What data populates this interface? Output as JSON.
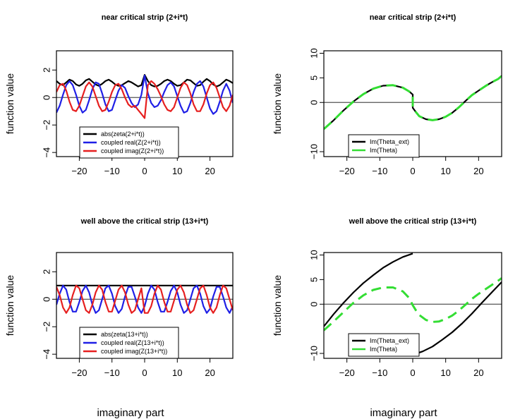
{
  "figure": {
    "bottom_labels": [
      "imaginary part",
      "imaginary part"
    ]
  },
  "chart_data": [
    {
      "type": "line",
      "title": "near critical strip (2+i*t)",
      "ylabel": "function value",
      "xlim": [
        -27,
        27
      ],
      "ylim": [
        -4.3,
        3.4
      ],
      "xticks": [
        -20,
        -10,
        0,
        10,
        20
      ],
      "yticks": [
        -4,
        -2,
        0,
        2
      ],
      "legend": "bottom-center",
      "grid": false,
      "series": [
        {
          "name": "abs(zeta(2+i*t))",
          "color": "#000000",
          "dash": "solid",
          "x": [
            -27,
            -26,
            -25,
            -24,
            -23,
            -22,
            -21,
            -20,
            -19,
            -18,
            -17,
            -16,
            -15,
            -14,
            -13,
            -12,
            -11,
            -10,
            -9,
            -8,
            -7,
            -6,
            -5,
            -4,
            -3,
            -2,
            -1,
            0,
            1,
            2,
            3,
            4,
            5,
            6,
            7,
            8,
            9,
            10,
            11,
            12,
            13,
            14,
            15,
            16,
            17,
            18,
            19,
            20,
            21,
            22,
            23,
            24,
            25,
            26,
            27
          ],
          "y": [
            1.2,
            1.0,
            0.9,
            1.1,
            1.3,
            1.2,
            0.95,
            0.85,
            1.0,
            1.25,
            1.35,
            1.15,
            0.95,
            0.85,
            1.0,
            1.2,
            1.3,
            1.15,
            0.95,
            0.85,
            0.9,
            1.05,
            1.2,
            1.1,
            0.95,
            0.8,
            0.9,
            1.65,
            1.2,
            0.9,
            0.8,
            0.85,
            1.0,
            1.2,
            1.3,
            1.2,
            1.0,
            0.85,
            0.9,
            1.1,
            1.3,
            1.25,
            1.05,
            0.85,
            0.9,
            1.15,
            1.35,
            1.2,
            0.95,
            0.8,
            0.9,
            1.1,
            1.3,
            1.2,
            1.05
          ]
        },
        {
          "name": "coupled real(Z(2+i*t))",
          "color": "#1f1fe6",
          "dash": "solid",
          "x": [
            -27,
            -26,
            -25,
            -24,
            -23,
            -22,
            -21,
            -20,
            -19,
            -18,
            -17,
            -16,
            -15,
            -14,
            -13,
            -12,
            -11,
            -10,
            -9,
            -8,
            -7,
            -6,
            -5,
            -4,
            -3,
            -2,
            -1,
            0,
            1,
            2,
            3,
            4,
            5,
            6,
            7,
            8,
            9,
            10,
            11,
            12,
            13,
            14,
            15,
            16,
            17,
            18,
            19,
            20,
            21,
            22,
            23,
            24,
            25,
            26,
            27
          ],
          "y": [
            -1.1,
            -0.6,
            0.2,
            0.9,
            1.2,
            0.9,
            0.2,
            -0.6,
            -1.1,
            -0.9,
            -0.2,
            0.6,
            1.1,
            1.0,
            0.3,
            -0.5,
            -1.0,
            -0.9,
            -0.2,
            0.5,
            0.9,
            0.7,
            0.1,
            -0.4,
            -0.7,
            -0.5,
            0.2,
            1.6,
            0.3,
            -0.4,
            -0.7,
            -0.6,
            -0.2,
            0.4,
            0.9,
            1.1,
            0.8,
            0.1,
            -0.6,
            -1.1,
            -1.0,
            -0.4,
            0.4,
            1.0,
            1.2,
            0.8,
            0.0,
            -0.8,
            -1.2,
            -1.0,
            -0.3,
            0.5,
            1.0,
            0.5,
            -0.4
          ]
        },
        {
          "name": "coupled imag(Z(2+i*t))",
          "color": "#e61f1f",
          "dash": "solid",
          "x": [
            -27,
            -26,
            -25,
            -24,
            -23,
            -22,
            -21,
            -20,
            -19,
            -18,
            -17,
            -16,
            -15,
            -14,
            -13,
            -12,
            -11,
            -10,
            -9,
            -8,
            -7,
            -6,
            -5,
            -4,
            -3,
            -2,
            -1,
            0,
            1,
            2,
            3,
            4,
            5,
            6,
            7,
            8,
            9,
            10,
            11,
            12,
            13,
            14,
            15,
            16,
            17,
            18,
            19,
            20,
            21,
            22,
            23,
            24,
            25,
            26,
            27
          ],
          "y": [
            0.4,
            0.9,
            1.0,
            0.5,
            -0.3,
            -0.9,
            -1.0,
            -0.6,
            0.1,
            0.8,
            1.1,
            0.8,
            0.1,
            -0.6,
            -1.0,
            -0.9,
            -0.3,
            0.4,
            0.9,
            1.0,
            0.6,
            0.0,
            -0.5,
            -0.7,
            -0.6,
            -0.9,
            -1.2,
            -1.5,
            0.9,
            1.2,
            1.0,
            0.6,
            0.1,
            -0.5,
            -0.9,
            -1.0,
            -0.7,
            0.0,
            0.7,
            1.1,
            0.9,
            0.3,
            -0.5,
            -1.0,
            -1.0,
            -0.5,
            0.3,
            0.9,
            1.1,
            0.7,
            0.0,
            -0.7,
            -1.0,
            -0.6,
            0.2
          ]
        }
      ]
    },
    {
      "type": "line",
      "title": "near critical strip (2+i*t)",
      "ylabel": "function value",
      "xlim": [
        -27,
        27
      ],
      "ylim": [
        -11,
        10.5
      ],
      "xticks": [
        -20,
        -10,
        0,
        10,
        20
      ],
      "yticks": [
        -10,
        0,
        5,
        10
      ],
      "legend": "bottom-center",
      "grid": false,
      "series": [
        {
          "name": "Im(Theta_ext)",
          "color": "#000000",
          "dash": "solid",
          "x": [
            -27,
            -24,
            -21,
            -18,
            -15,
            -12,
            -9,
            -6,
            -3,
            -1,
            0,
            0.01,
            1,
            2,
            4,
            6,
            8,
            10,
            12,
            14,
            16,
            18,
            20,
            22,
            24,
            26,
            27
          ],
          "y": [
            -5.4,
            -3.6,
            -1.6,
            0.2,
            1.7,
            2.8,
            3.4,
            3.5,
            3.0,
            2.2,
            1.6,
            -1.1,
            -2.0,
            -2.8,
            -3.4,
            -3.6,
            -3.4,
            -2.9,
            -2.1,
            -1.0,
            0.3,
            1.5,
            2.4,
            3.3,
            4.1,
            4.8,
            5.4
          ]
        },
        {
          "name": "Im(Theta)",
          "color": "#33dd33",
          "dash": "dashed",
          "x": [
            -27,
            -24,
            -21,
            -18,
            -15,
            -12,
            -9,
            -6,
            -3,
            -1,
            0,
            0.01,
            1,
            2,
            4,
            6,
            8,
            10,
            12,
            14,
            16,
            18,
            20,
            22,
            24,
            26,
            27
          ],
          "y": [
            -5.4,
            -3.6,
            -1.6,
            0.2,
            1.7,
            2.8,
            3.4,
            3.5,
            3.0,
            2.2,
            1.6,
            -1.1,
            -2.0,
            -2.8,
            -3.4,
            -3.6,
            -3.4,
            -2.9,
            -2.1,
            -1.0,
            0.3,
            1.5,
            2.4,
            3.3,
            4.1,
            4.8,
            5.4
          ]
        }
      ]
    },
    {
      "type": "line",
      "title": "well above the critical strip (13+i*t)",
      "ylabel": "function value",
      "xlim": [
        -27,
        27
      ],
      "ylim": [
        -4.3,
        3.4
      ],
      "xticks": [
        -20,
        -10,
        0,
        10,
        20
      ],
      "yticks": [
        -4,
        -2,
        0,
        2
      ],
      "legend": "bottom-center",
      "grid": false,
      "series": [
        {
          "name": "abs(zeta(13+i*t))",
          "color": "#000000",
          "dash": "solid",
          "x": [
            -27,
            27
          ],
          "y": [
            1.0,
            1.0
          ]
        },
        {
          "name": "coupled real(Z(13+i*t))",
          "color": "#1f1fe6",
          "dash": "solid",
          "x": [
            -27,
            -26,
            -25,
            -24,
            -23,
            -22,
            -21,
            -20,
            -19,
            -18,
            -17,
            -16,
            -15,
            -14,
            -13,
            -12,
            -11,
            -10,
            -9,
            -8,
            -7,
            -6,
            -5,
            -4,
            -3,
            -2,
            -1,
            0,
            1,
            2,
            3,
            4,
            5,
            6,
            7,
            8,
            9,
            10,
            11,
            12,
            13,
            14,
            15,
            16,
            17,
            18,
            19,
            20,
            21,
            22,
            23,
            24,
            25,
            26,
            27
          ],
          "y": [
            -0.4,
            0.4,
            1.0,
            0.7,
            -0.2,
            -0.9,
            -0.9,
            -0.2,
            0.6,
            1.0,
            0.5,
            -0.4,
            -1.0,
            -0.8,
            0.0,
            0.8,
            1.0,
            0.4,
            -0.5,
            -1.0,
            -0.7,
            0.2,
            0.9,
            0.9,
            0.2,
            -0.6,
            -1.0,
            -0.5,
            0.4,
            1.0,
            0.7,
            -0.2,
            -0.9,
            -0.9,
            -0.2,
            0.6,
            1.0,
            0.5,
            -0.4,
            -1.0,
            -0.8,
            0.0,
            0.8,
            1.0,
            0.4,
            -0.5,
            -1.0,
            -0.7,
            0.2,
            0.9,
            0.9,
            0.2,
            -0.6,
            -1.0,
            -0.5
          ]
        },
        {
          "name": "coupled imag(Z(13+i*t))",
          "color": "#e61f1f",
          "dash": "solid",
          "x": [
            -27,
            -26,
            -25,
            -24,
            -23,
            -22,
            -21,
            -20,
            -19,
            -18,
            -17,
            -16,
            -15,
            -14,
            -13,
            -12,
            -11,
            -10,
            -9,
            -8,
            -7,
            -6,
            -5,
            -4,
            -3,
            -2,
            -1,
            0,
            1,
            2,
            3,
            4,
            5,
            6,
            7,
            8,
            9,
            10,
            11,
            12,
            13,
            14,
            15,
            16,
            17,
            18,
            19,
            20,
            21,
            22,
            23,
            24,
            25,
            26,
            27
          ],
          "y": [
            0.9,
            0.3,
            -0.6,
            -1.0,
            -0.6,
            0.3,
            1.0,
            0.8,
            0.0,
            -0.8,
            -1.0,
            -0.4,
            0.5,
            1.0,
            0.7,
            -0.2,
            -0.9,
            -0.9,
            -0.1,
            0.7,
            1.0,
            0.5,
            -0.4,
            -1.0,
            -0.8,
            0.0,
            0.8,
            -1.0,
            -1.0,
            -0.5,
            0.4,
            1.0,
            0.7,
            -0.2,
            -0.9,
            -0.9,
            -0.1,
            0.7,
            1.0,
            0.5,
            -0.4,
            -1.0,
            -0.8,
            0.0,
            0.8,
            1.0,
            0.3,
            -0.6,
            -1.0,
            -0.6,
            0.3,
            1.0,
            0.8,
            0.0,
            -0.8
          ]
        }
      ]
    },
    {
      "type": "line",
      "title": "well above the critical strip (13+i*t)",
      "ylabel": "function value",
      "xlim": [
        -27,
        27
      ],
      "ylim": [
        -11,
        10.5
      ],
      "xticks": [
        -20,
        -10,
        0,
        10,
        20
      ],
      "yticks": [
        -10,
        0,
        5,
        10
      ],
      "legend": "bottom-center",
      "grid": false,
      "series": [
        {
          "name": "Im(Theta_ext)",
          "color": "#000000",
          "dash": "solid",
          "x": [
            -27,
            -24,
            -21,
            -18,
            -15,
            -12,
            -9,
            -6,
            -3,
            0,
            null,
            0,
            3,
            6,
            9,
            12,
            15,
            18,
            21,
            24,
            27
          ],
          "y": [
            -4.5,
            -2.0,
            0.3,
            2.4,
            4.3,
            5.9,
            7.4,
            8.6,
            9.6,
            10.3,
            null,
            -10.3,
            -9.6,
            -8.6,
            -7.2,
            -5.7,
            -3.9,
            -1.9,
            0.3,
            2.4,
            4.5
          ]
        },
        {
          "name": "Im(Theta)",
          "color": "#33dd33",
          "dash": "dashed",
          "x": [
            -27,
            -24,
            -21,
            -18,
            -15,
            -12,
            -9,
            -6,
            -3,
            -1,
            0,
            1,
            2,
            4,
            6,
            8,
            10,
            12,
            14,
            16,
            18,
            20,
            22,
            24,
            26,
            27
          ],
          "y": [
            -5.3,
            -3.5,
            -1.6,
            0.3,
            1.8,
            2.9,
            3.4,
            3.4,
            2.6,
            1.2,
            -0.2,
            -1.3,
            -2.2,
            -3.2,
            -3.6,
            -3.5,
            -3.0,
            -2.3,
            -1.3,
            -0.1,
            1.1,
            2.1,
            3.0,
            3.9,
            4.8,
            5.3
          ]
        }
      ]
    }
  ]
}
